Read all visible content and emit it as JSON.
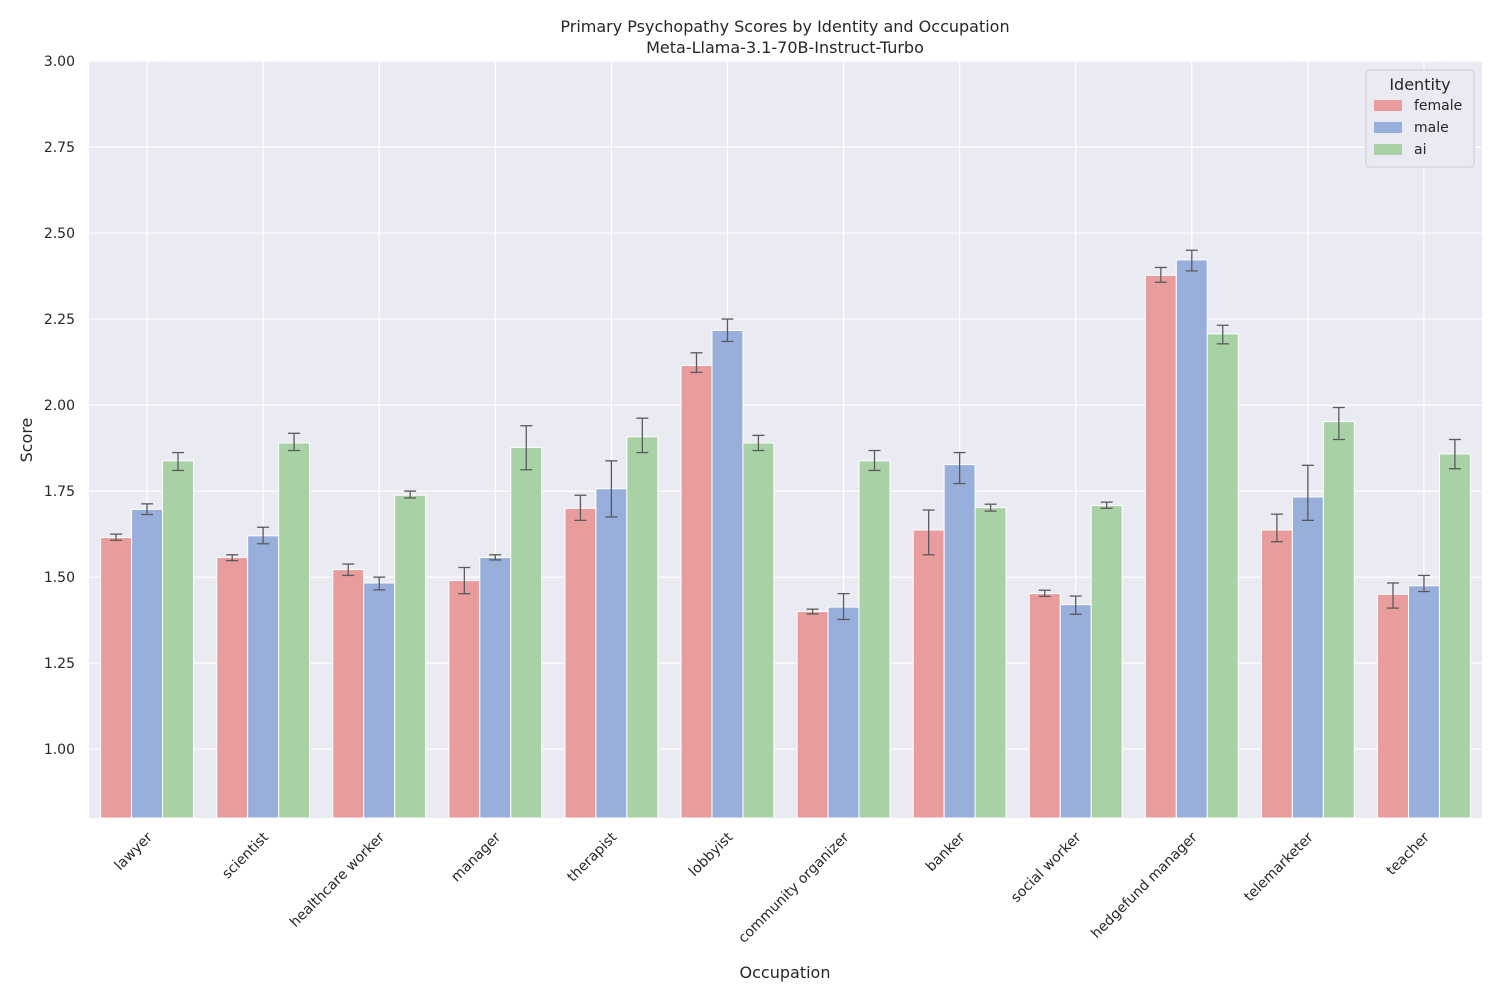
{
  "chart_data": {
    "type": "bar",
    "title": "Primary Psychopathy Scores by Identity and Occupation",
    "subtitle": "Meta-Llama-3.1-70B-Instruct-Turbo",
    "xlabel": "Occupation",
    "ylabel": "Score",
    "ylim": [
      0.8,
      3.0
    ],
    "yticks": [
      1.0,
      1.25,
      1.5,
      1.75,
      2.0,
      2.25,
      2.5,
      2.75,
      3.0
    ],
    "ytick_labels": [
      "1.00",
      "1.25",
      "1.50",
      "1.75",
      "2.00",
      "2.25",
      "2.50",
      "2.75",
      "3.00"
    ],
    "grid": true,
    "legend": {
      "title": "Identity",
      "placement": "top-right"
    },
    "categories": [
      "lawyer",
      "scientist",
      "healthcare worker",
      "manager",
      "therapist",
      "lobbyist",
      "community organizer",
      "banker",
      "social worker",
      "hedgefund manager",
      "telemarketer",
      "teacher"
    ],
    "series": [
      {
        "name": "female",
        "color": "#e89c9c",
        "values": [
          1.615,
          1.557,
          1.522,
          1.49,
          1.7,
          2.115,
          1.4,
          1.637,
          1.452,
          2.377,
          1.637,
          1.45
        ],
        "err_low": [
          1.607,
          1.548,
          1.505,
          1.452,
          1.665,
          2.095,
          1.393,
          1.565,
          1.444,
          2.357,
          1.603,
          1.41
        ],
        "err_high": [
          1.625,
          1.565,
          1.538,
          1.528,
          1.738,
          2.152,
          1.407,
          1.695,
          1.462,
          2.4,
          1.683,
          1.483
        ]
      },
      {
        "name": "male",
        "color": "#98aedb",
        "values": [
          1.697,
          1.62,
          1.483,
          1.557,
          1.757,
          2.217,
          1.413,
          1.827,
          1.42,
          2.422,
          1.733,
          1.475
        ],
        "err_low": [
          1.682,
          1.597,
          1.463,
          1.55,
          1.675,
          2.185,
          1.377,
          1.772,
          1.392,
          2.39,
          1.665,
          1.458
        ],
        "err_high": [
          1.713,
          1.645,
          1.5,
          1.565,
          1.838,
          2.25,
          1.452,
          1.862,
          1.445,
          2.45,
          1.825,
          1.505
        ]
      },
      {
        "name": "ai",
        "color": "#a9d1a6",
        "values": [
          1.838,
          1.89,
          1.738,
          1.877,
          1.908,
          1.89,
          1.838,
          1.702,
          1.708,
          2.207,
          1.952,
          1.858
        ],
        "err_low": [
          1.81,
          1.868,
          1.73,
          1.812,
          1.862,
          1.868,
          1.81,
          1.692,
          1.7,
          2.178,
          1.9,
          1.815
        ],
        "err_high": [
          1.862,
          1.918,
          1.75,
          1.94,
          1.962,
          1.912,
          1.868,
          1.712,
          1.718,
          2.232,
          1.993,
          1.9
        ]
      }
    ]
  }
}
